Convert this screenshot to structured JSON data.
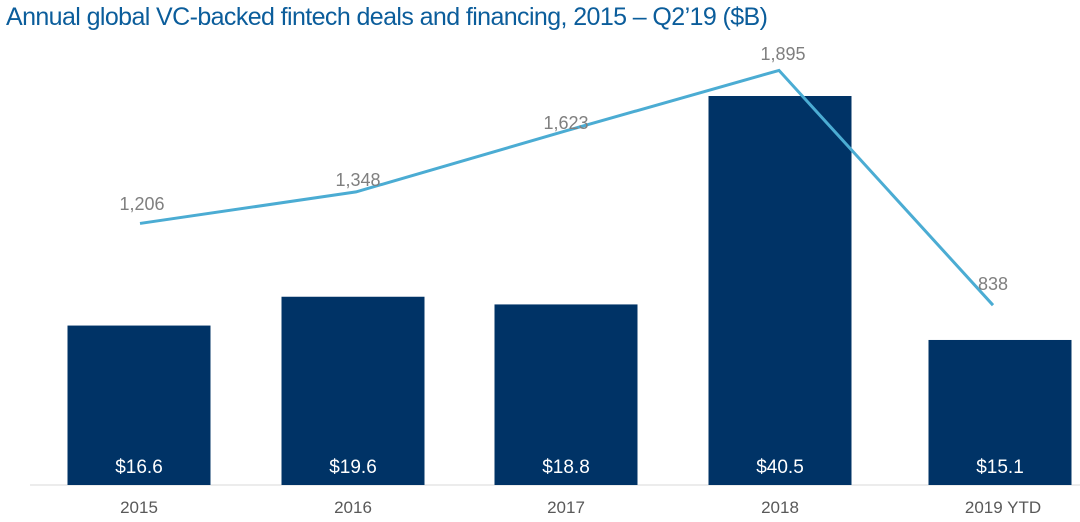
{
  "title": "Annual global VC-backed fintech deals and financing, 2015 – Q2’19 ($B)",
  "chart_data": {
    "type": "bar",
    "title": "Annual global VC-backed fintech deals and financing, 2015 – Q2’19 ($B)",
    "categories": [
      "2015",
      "2016",
      "2017",
      "2018",
      "2019 YTD"
    ],
    "series": [
      {
        "type": "bar",
        "values": [
          16.6,
          19.6,
          18.8,
          40.5,
          15.1
        ],
        "labels": [
          "$16.6",
          "$19.6",
          "$18.8",
          "$40.5",
          "$15.1"
        ],
        "color": "#003366"
      },
      {
        "type": "line",
        "values": [
          1206,
          1348,
          1623,
          1895,
          838
        ],
        "labels": [
          "1,206",
          "1,348",
          "1,623",
          "1,895",
          "838"
        ],
        "color": "#4bacd3"
      }
    ],
    "xlabel": "",
    "ylabel": "",
    "grid": false,
    "legend": "none",
    "bar_ylim": [
      0,
      45.5
    ],
    "line_ylim": [
      -360,
      2000
    ]
  }
}
